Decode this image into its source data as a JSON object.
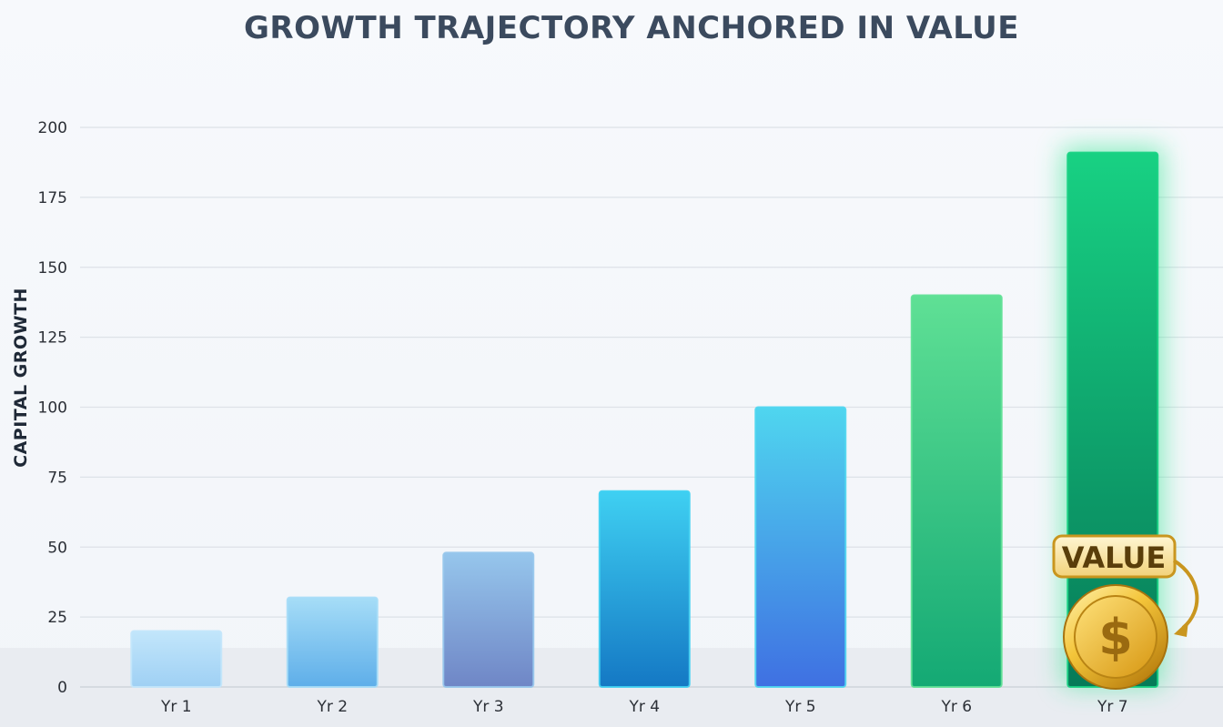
{
  "chart_data": {
    "type": "bar",
    "title": "GROWTH TRAJECTORY ANCHORED IN VALUE",
    "xlabel": "",
    "ylabel": "CAPITAL GROWTH",
    "categories": [
      "Yr 1",
      "Yr 2",
      "Yr 3",
      "Yr 4",
      "Yr 5",
      "Yr 6",
      "Yr 7"
    ],
    "values": [
      20,
      32,
      48,
      70,
      100,
      140,
      191
    ],
    "ylim": [
      0,
      200
    ],
    "yticks": [
      0,
      25,
      50,
      75,
      100,
      125,
      150,
      175,
      200
    ],
    "grid": true,
    "legend": "none",
    "bar_colors": [
      [
        "#c2e6fb",
        "#9fd0f4"
      ],
      [
        "#a6ddf7",
        "#5eaee9"
      ],
      [
        "#96c6ec",
        "#6f86c6"
      ],
      [
        "#3fd0f2",
        "#1478c4"
      ],
      [
        "#4fd6ef",
        "#3f70e2"
      ],
      [
        "#5fe095",
        "#14a974"
      ],
      [
        "#18d183",
        "#067a58"
      ]
    ],
    "annotation": {
      "label": "VALUE",
      "category": "Yr 7",
      "icon": "dollar-coin-icon",
      "symbol": "$"
    }
  }
}
